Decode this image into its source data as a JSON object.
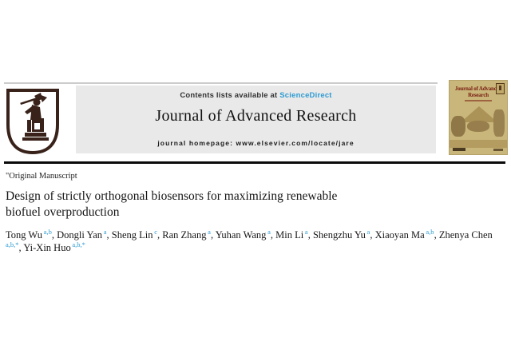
{
  "banner": {
    "contents_prefix": "Contents lists available at ",
    "sciencedirect_link": "ScienceDirect",
    "journal_name": "Journal of Advanced Research",
    "homepage_prefix": "journal homepage: ",
    "homepage_url": "www.elsevier.com/locate/jare"
  },
  "cover": {
    "title": "Journal of Advanced Research"
  },
  "article": {
    "type_label": "\"Original Manuscript",
    "title": "Design of strictly orthogonal biosensors for maximizing renewable biofuel overproduction",
    "authors": [
      {
        "name": "Tong Wu",
        "sup": "a,b"
      },
      {
        "name": "Dongli Yan",
        "sup": "a"
      },
      {
        "name": "Sheng Lin",
        "sup": "c"
      },
      {
        "name": "Ran Zhang",
        "sup": "a"
      },
      {
        "name": "Yuhan Wang",
        "sup": "a"
      },
      {
        "name": "Min Li",
        "sup": "a"
      },
      {
        "name": "Shengzhu Yu",
        "sup": "a"
      },
      {
        "name": "Xiaoyan Ma",
        "sup": "a,b"
      },
      {
        "name": "Zhenya Chen",
        "sup": "a,b,*"
      },
      {
        "name": "Yi-Xin Huo",
        "sup": "a,b,*"
      }
    ],
    "author_separator": ", "
  },
  "colors": {
    "accent_blue": "#2d9bd2",
    "banner_gray": "#e9e9e9",
    "cover_background": "#c9b67a",
    "cover_title_red": "#7a2014"
  }
}
